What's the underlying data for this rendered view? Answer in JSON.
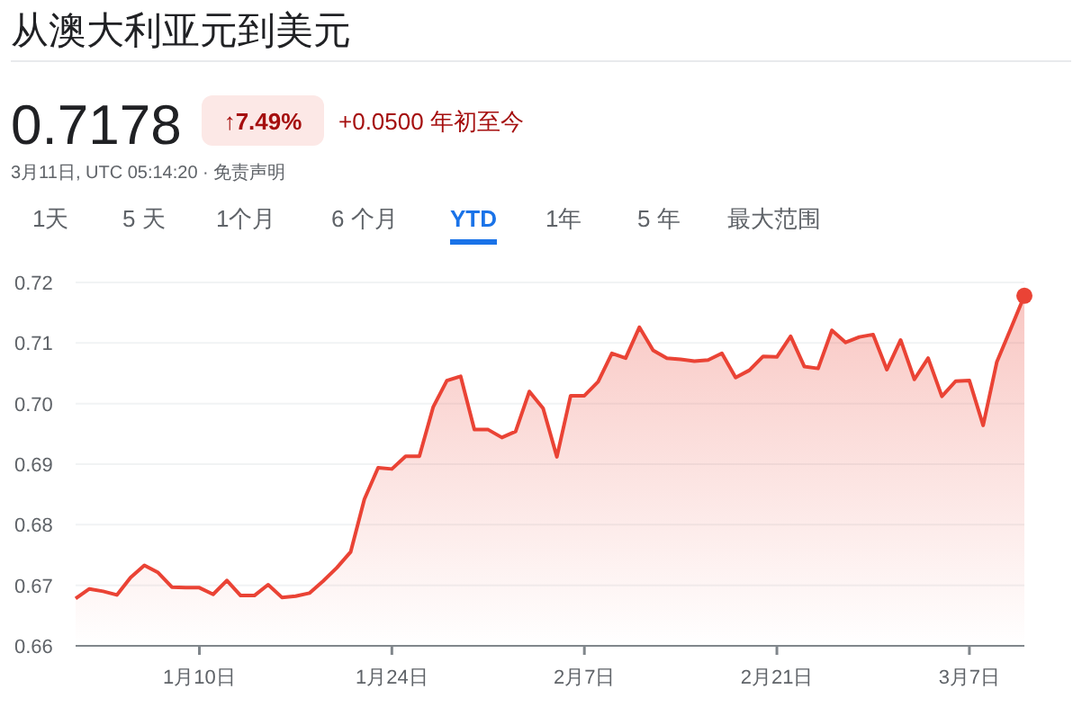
{
  "chart_data": {
    "type": "area",
    "title": "从澳大利亚元到美元",
    "annotations": [
      "0.7178",
      "↑7.49%",
      "+0.0500 年初至今",
      "3月11日, UTC 05:14:20 · 免责声明",
      "1天",
      "5 天",
      "1个月",
      "6 个月",
      "YTD",
      "1年",
      "5 年",
      "最大范围"
    ],
    "x": [
      "--01-01",
      "--01-02",
      "--01-03",
      "--01-04",
      "--01-05",
      "--01-06",
      "--01-07",
      "--01-08",
      "--01-09",
      "--01-10",
      "--01-11",
      "--01-12",
      "--01-13",
      "--01-14",
      "--01-15",
      "--01-16",
      "--01-17",
      "--01-18",
      "--01-19",
      "--01-20",
      "--01-21",
      "--01-22",
      "--01-23",
      "--01-24",
      "--01-25",
      "--01-26",
      "--01-27",
      "--01-28",
      "--01-29",
      "--01-30",
      "--01-31",
      "--02-01",
      "--02-02",
      "--02-03",
      "--02-04",
      "--02-05",
      "--02-06",
      "--02-07",
      "--02-08",
      "--02-09",
      "--02-10",
      "--02-11",
      "--02-12",
      "--02-13",
      "--02-14",
      "--02-15",
      "--02-16",
      "--02-17",
      "--02-18",
      "--02-19",
      "--02-20",
      "--02-21",
      "--02-22",
      "--02-23",
      "--02-24",
      "--02-25",
      "--02-26",
      "--02-27",
      "--02-28",
      "--03-01",
      "--03-02",
      "--03-03",
      "--03-04",
      "--03-05",
      "--03-06",
      "--03-07",
      "--03-08",
      "--03-09",
      "--03-10",
      "--03-11"
    ],
    "series": [
      {
        "color": "#ea4335",
        "values": [
          0.6678,
          0.6694,
          0.669,
          0.6684,
          0.6713,
          0.6733,
          0.6721,
          0.6697,
          0.6696,
          0.6696,
          0.6685,
          0.6708,
          0.6683,
          0.6683,
          0.6701,
          0.668,
          0.6682,
          0.6687,
          0.6707,
          0.6729,
          0.6755,
          0.6842,
          0.6894,
          0.6892,
          0.6913,
          0.6913,
          0.6994,
          0.7038,
          0.7045,
          0.6957,
          0.6957,
          0.6944,
          0.6954,
          0.702,
          0.6992,
          0.6912,
          0.7013,
          0.7013,
          0.7036,
          0.7083,
          0.7075,
          0.7126,
          0.7088,
          0.7075,
          0.7073,
          0.707,
          0.7072,
          0.7083,
          0.7043,
          0.7055,
          0.7078,
          0.7077,
          0.7111,
          0.7061,
          0.7058,
          0.7121,
          0.7101,
          0.711,
          0.7114,
          0.7056,
          0.7105,
          0.704,
          0.7075,
          0.7012,
          0.7037,
          0.7038,
          0.6964,
          0.7069,
          0.7123,
          0.7178
        ]
      }
    ],
    "xlim": [
      "--01-01",
      "--03-11"
    ],
    "xticks": [
      {
        "value": "--01-10",
        "label": "1月10日"
      },
      {
        "value": "--01-24",
        "label": "1月24日"
      },
      {
        "value": "--02-07",
        "label": "2月7日"
      },
      {
        "value": "--02-21",
        "label": "2月21日"
      },
      {
        "value": "--03-07",
        "label": "3月7日"
      }
    ],
    "ylim": [
      0.66,
      0.72
    ],
    "yticks": [
      {
        "value": 0.66,
        "label": "0.66"
      },
      {
        "value": 0.67,
        "label": "0.67"
      },
      {
        "value": 0.68,
        "label": "0.68"
      },
      {
        "value": 0.69,
        "label": "0.69"
      },
      {
        "value": 0.7,
        "label": "0.70"
      },
      {
        "value": 0.71,
        "label": "0.71"
      },
      {
        "value": 0.72,
        "label": "0.72"
      }
    ],
    "grid": "y"
  }
}
